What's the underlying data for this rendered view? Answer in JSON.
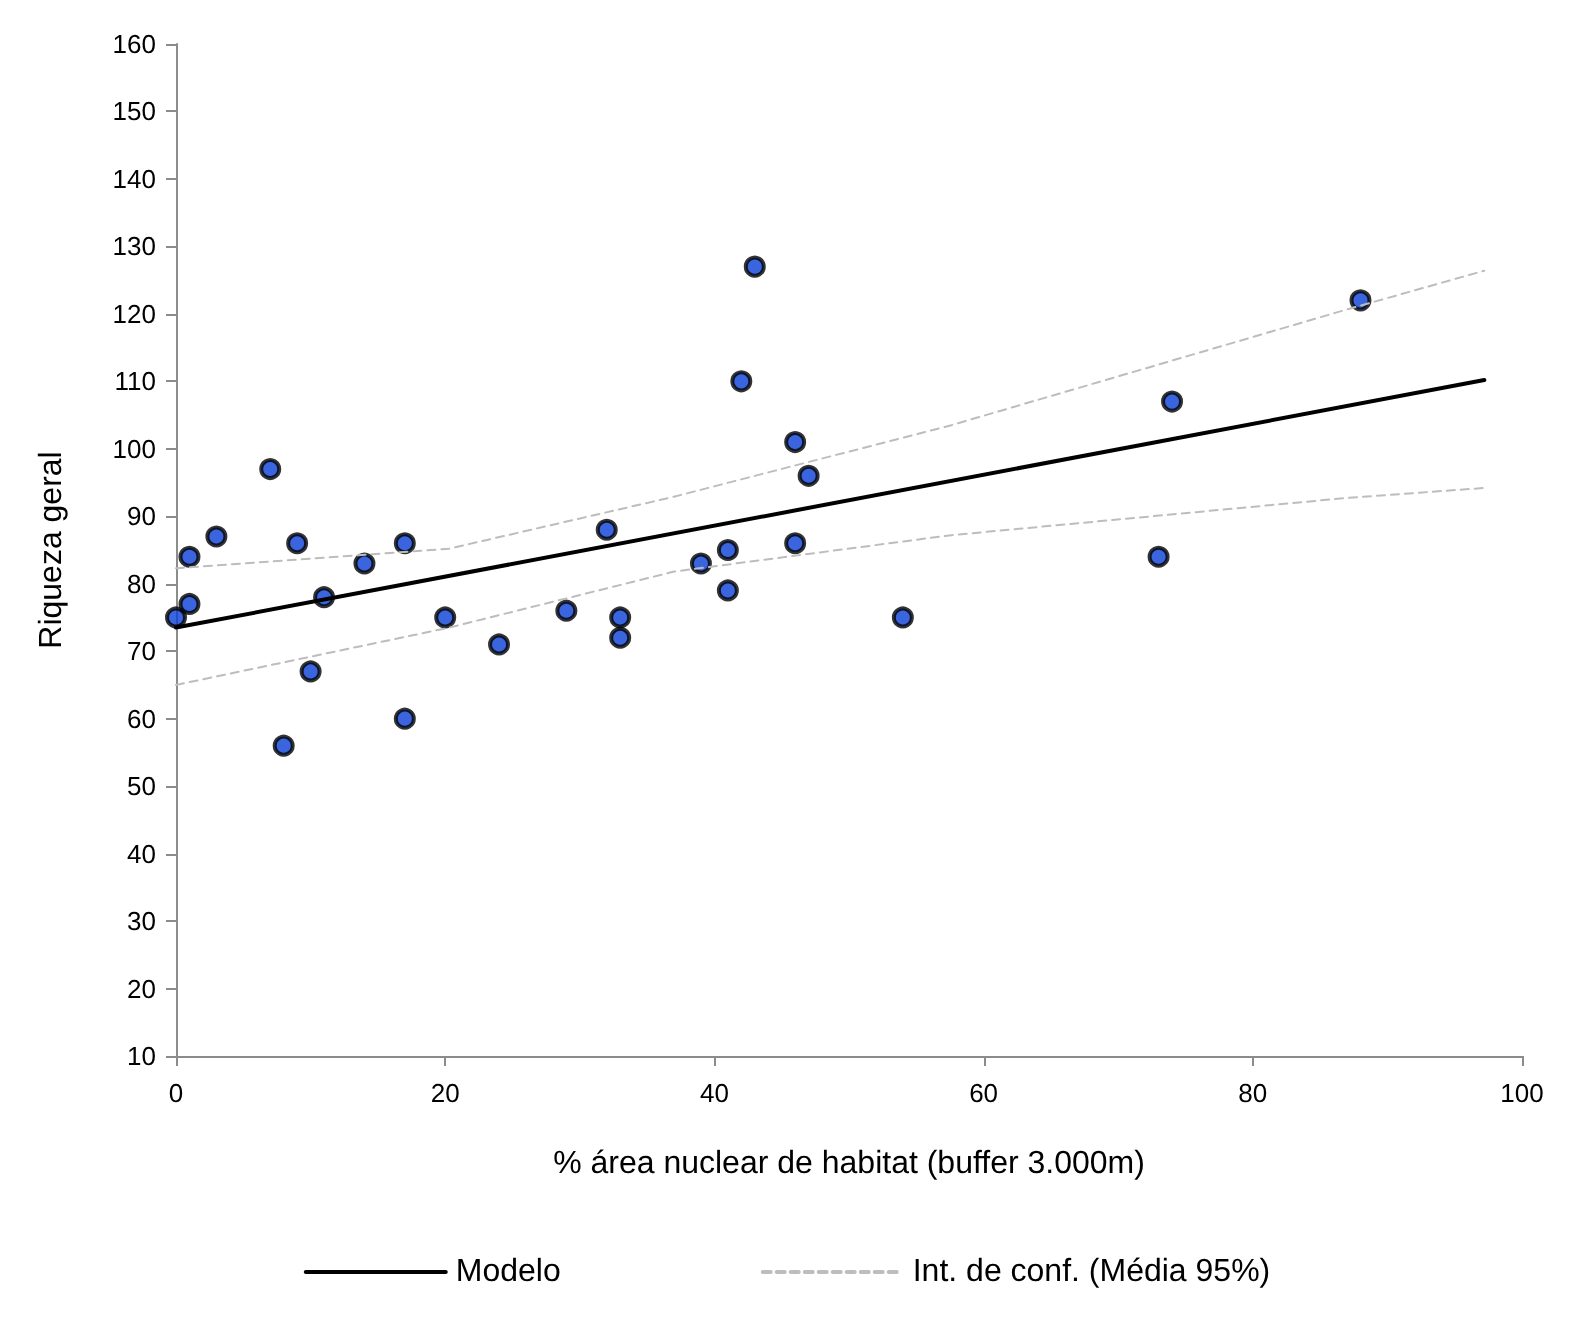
{
  "chart_data": {
    "type": "scatter",
    "xlabel": "% área nuclear de habitat (buffer 3.000m)",
    "ylabel": "Riqueza geral",
    "xlim": [
      0,
      100
    ],
    "xticks": [
      0,
      20,
      40,
      60,
      80,
      100
    ],
    "ylim": [
      10,
      160
    ],
    "yticks": [
      10,
      20,
      30,
      40,
      50,
      60,
      70,
      80,
      90,
      100,
      110,
      120,
      130,
      140,
      150,
      160
    ],
    "grid": false,
    "legend": "bottom",
    "series": [
      {
        "marker": "circle",
        "color": "#0a3fd6",
        "x": [
          0,
          1,
          1,
          3,
          7,
          8,
          9,
          10,
          11,
          14,
          17,
          17,
          20,
          24,
          29,
          32,
          33,
          33,
          39,
          41,
          41,
          42,
          43,
          46,
          46,
          47,
          54,
          73,
          74,
          88
        ],
        "values": [
          75,
          84,
          77,
          87,
          97,
          56,
          86,
          67,
          78,
          83,
          86,
          60,
          75,
          71,
          76,
          88,
          75,
          72,
          83,
          85,
          79,
          110,
          127,
          101,
          86,
          96,
          75,
          84,
          107,
          122
        ]
      },
      {
        "type": "line",
        "name": "Modelo",
        "marker": "none",
        "color": "#000000",
        "line_style": "solid",
        "x": [
          0,
          97.2
        ],
        "values": [
          73.5,
          110.2
        ]
      },
      {
        "type": "line",
        "name": "Int. de conf. (Média 95%)",
        "marker": "none",
        "color": "#bdbdbd",
        "line_style": "dashed",
        "x": [
          0,
          20.3,
          37,
          57.6,
          86.9,
          97.2
        ],
        "values": [
          82.3,
          85.2,
          92.9,
          103.5,
          120.6,
          126.4
        ]
      },
      {
        "type": "line",
        "marker": "none",
        "color": "#bdbdbd",
        "line_style": "dashed",
        "x": [
          0,
          20.3,
          37,
          57.6,
          86.9,
          97.2
        ],
        "values": [
          65,
          73.5,
          81.8,
          87.2,
          92.7,
          94.2
        ]
      }
    ]
  }
}
